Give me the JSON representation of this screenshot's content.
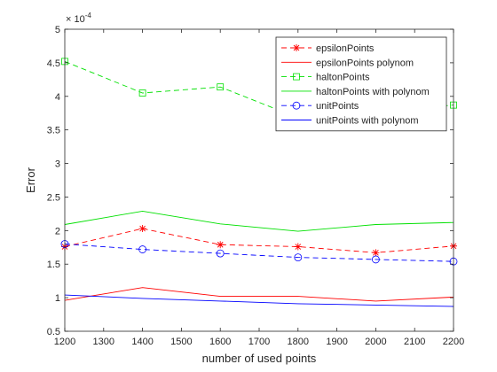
{
  "chart_data": {
    "type": "line",
    "xlabel": "number of used points",
    "ylabel": "Error",
    "exponent_label": "× 10",
    "exponent_power": "-4",
    "xlim": [
      1200,
      2200
    ],
    "ylim": [
      0.5,
      5
    ],
    "x_ticks": [
      1200,
      1300,
      1400,
      1500,
      1600,
      1700,
      1800,
      1900,
      2000,
      2100,
      2200
    ],
    "y_ticks": [
      0.5,
      1,
      1.5,
      2,
      2.5,
      3,
      3.5,
      4,
      4.5,
      5
    ],
    "y_tick_labels": [
      "0.5",
      "1",
      "1.5",
      "2",
      "2.5",
      "3",
      "3.5",
      "4",
      "4.5",
      "5"
    ],
    "grid": false,
    "legend_position": "top-right",
    "x": [
      1200,
      1400,
      1600,
      1800,
      2000,
      2200
    ],
    "series": [
      {
        "name": "epsilonPoints",
        "values": [
          1.76,
          2.03,
          1.79,
          1.76,
          1.67,
          1.77
        ],
        "color": "#ff0000",
        "dash": "dashed",
        "marker": "asterisk"
      },
      {
        "name": "epsilonPoints polynom",
        "values": [
          0.96,
          1.15,
          1.02,
          1.02,
          0.95,
          1.01
        ],
        "color": "#ff0000",
        "dash": "solid",
        "marker": "none"
      },
      {
        "name": "haltonPoints",
        "values": [
          4.52,
          4.05,
          4.14,
          3.68,
          3.76,
          3.87
        ],
        "color": "#00e000",
        "dash": "dashed",
        "marker": "square"
      },
      {
        "name": "haltonPoints with polynom",
        "values": [
          2.09,
          2.29,
          2.1,
          1.99,
          2.09,
          2.12
        ],
        "color": "#00e000",
        "dash": "solid",
        "marker": "none"
      },
      {
        "name": "unitPoints",
        "values": [
          1.8,
          1.72,
          1.66,
          1.6,
          1.57,
          1.54
        ],
        "color": "#0000ff",
        "dash": "dashed",
        "marker": "circle"
      },
      {
        "name": "unitPoints with polynom",
        "values": [
          1.04,
          0.99,
          0.95,
          0.91,
          0.89,
          0.87
        ],
        "color": "#0000ff",
        "dash": "solid",
        "marker": "none"
      }
    ]
  }
}
